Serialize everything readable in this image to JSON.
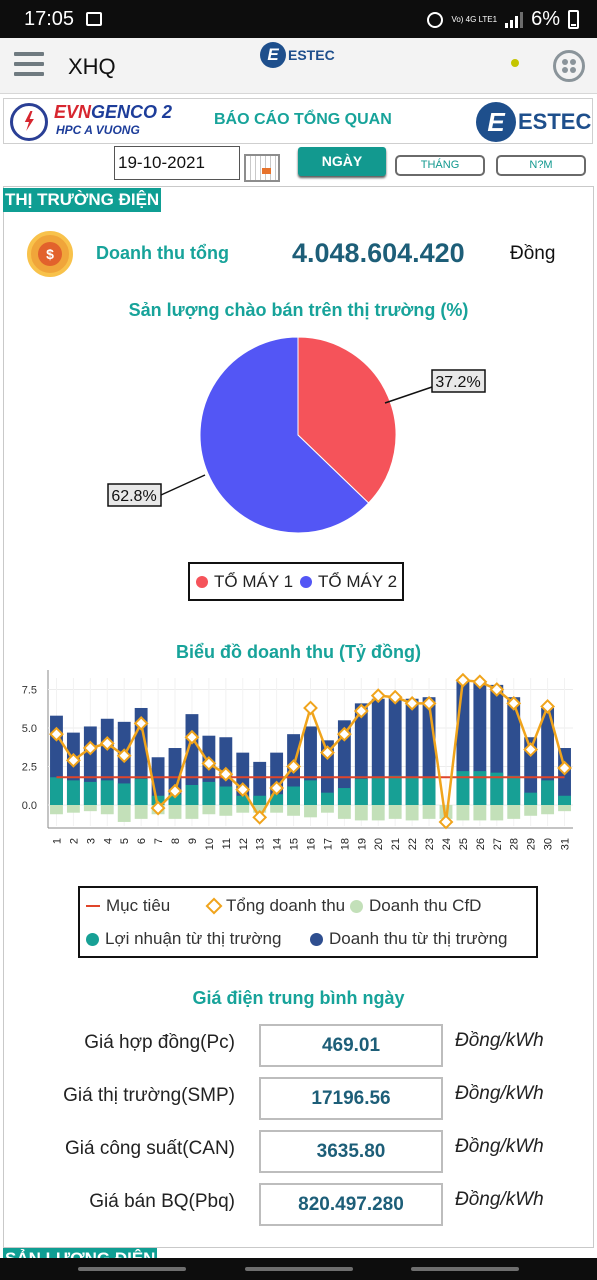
{
  "status_bar": {
    "time": "17:05",
    "network": "Vo) 4G\nLTE1",
    "battery": "6%"
  },
  "app_bar": {
    "title": "XHQ",
    "logo_text": "ESTEC",
    "status_dot_color": "#c4c500"
  },
  "banner": {
    "left_logo_line1_a": "EVN",
    "left_logo_line1_b": "GENCO 2",
    "left_logo_line2": "HPC A VUONG",
    "title": "BÁO CÁO TỔNG QUAN",
    "right_logo_letter": "E",
    "right_logo_text": "ESTEC"
  },
  "filter": {
    "date": "19-10-2021",
    "tab_day": "NGÀY",
    "tab_month": "THÁNG",
    "tab_year": "N?M"
  },
  "market_section": {
    "title": "THỊ TRƯỜNG ĐIỆN",
    "coin_symbol": "$",
    "revenue_label": "Doanh thu tổng",
    "revenue_value": "4.048.604.420",
    "revenue_unit": "Đồng"
  },
  "pie": {
    "title": "Sản lượng chào bán trên thị trường (%)",
    "label_a": "37.2%",
    "label_b": "62.8%",
    "legend_a": "TỔ MÁY 1",
    "legend_b": "TỔ MÁY 2"
  },
  "bar": {
    "title": "Biểu đồ doanh thu (Tỷ đồng)",
    "legend": {
      "target": "Mục tiêu",
      "total": "Tổng doanh thu",
      "cfd": "Doanh thu CfD",
      "profit": "Lợi nhuận từ thị trường",
      "market": "Doanh thu từ thị trường"
    }
  },
  "prices": {
    "title": "Giá điện trung bình ngày",
    "rows": [
      {
        "label": "Giá hợp đồng(Pc)",
        "value": "469.01",
        "unit": "Đồng/kWh"
      },
      {
        "label": "Giá thị trường(SMP)",
        "value": "17196.56",
        "unit": "Đồng/kWh"
      },
      {
        "label": "Giá công suất(CAN)",
        "value": "3635.80",
        "unit": "Đồng/kWh"
      },
      {
        "label": "Giá bán BQ(Pbq)",
        "value": "820.497.280",
        "unit": "Đồng/kWh"
      }
    ]
  },
  "next_section": {
    "title": "SẢN LƯỢNG ĐIỆN"
  },
  "colors": {
    "accent": "#17a39a",
    "pie_a": "#f5535a",
    "pie_b": "#5356f5",
    "market": "#2e4e8f",
    "profit": "#17a095",
    "cfd": "#c3e0b9",
    "target": "#e0452a",
    "total": "#f0a41c"
  },
  "chart_data": [
    {
      "type": "pie",
      "title": "Sản lượng chào bán trên thị trường (%)",
      "categories": [
        "TỔ MÁY 1",
        "TỔ MÁY 2"
      ],
      "values": [
        37.2,
        62.8
      ]
    },
    {
      "type": "bar",
      "title": "Biểu đồ doanh thu (Tỷ đồng)",
      "categories": [
        "1",
        "2",
        "3",
        "4",
        "5",
        "6",
        "7",
        "8",
        "9",
        "10",
        "11",
        "12",
        "13",
        "14",
        "15",
        "16",
        "17",
        "18",
        "19",
        "20",
        "21",
        "22",
        "23",
        "24",
        "25",
        "26",
        "27",
        "28",
        "29",
        "30",
        "31"
      ],
      "yticks": [
        "0.0",
        "2.5",
        "5.0",
        "7.5"
      ],
      "ylim": [
        -1.5,
        8.5
      ],
      "series": [
        {
          "name": "Doanh thu từ thị trường",
          "values": [
            5.8,
            4.7,
            5.1,
            5.6,
            5.4,
            6.3,
            3.1,
            3.7,
            5.9,
            4.5,
            4.4,
            3.4,
            2.8,
            3.4,
            4.6,
            5.1,
            4.2,
            5.5,
            6.6,
            6.9,
            7.0,
            6.9,
            7.0,
            0.0,
            8.1,
            8.0,
            7.8,
            7.0,
            4.4,
            6.3,
            3.7
          ]
        },
        {
          "name": "Lợi nhuận từ thị trường",
          "values": [
            1.8,
            1.6,
            1.5,
            1.6,
            1.4,
            1.7,
            0.6,
            0.7,
            1.3,
            1.5,
            1.2,
            0.6,
            0.6,
            0.7,
            1.2,
            1.6,
            0.8,
            1.1,
            1.7,
            1.8,
            1.9,
            1.8,
            1.8,
            0.0,
            2.2,
            2.2,
            2.1,
            1.9,
            0.8,
            1.6,
            0.6
          ]
        },
        {
          "name": "Doanh thu CfD",
          "values": [
            -0.6,
            -0.5,
            -0.4,
            -0.6,
            -1.1,
            -0.9,
            -0.6,
            -0.9,
            -0.9,
            -0.6,
            -0.7,
            -0.5,
            -0.5,
            -0.5,
            -0.7,
            -0.8,
            -0.5,
            -0.9,
            -1.0,
            -1.0,
            -0.9,
            -1.0,
            -0.9,
            -0.9,
            -1.0,
            -1.0,
            -1.0,
            -0.9,
            -0.7,
            -0.6,
            -0.4
          ]
        },
        {
          "name": "Tổng doanh thu",
          "values": [
            4.6,
            2.9,
            3.7,
            4.0,
            3.2,
            5.3,
            -0.2,
            0.9,
            4.4,
            2.7,
            2.0,
            1.0,
            -0.8,
            1.1,
            2.5,
            6.3,
            3.4,
            4.6,
            6.1,
            7.1,
            7.0,
            6.6,
            6.6,
            -1.1,
            8.1,
            8.0,
            7.5,
            6.6,
            3.6,
            6.4,
            2.4
          ]
        },
        {
          "name": "Mục tiêu",
          "values": [
            1.8,
            1.8,
            1.8,
            1.8,
            1.8,
            1.8,
            1.8,
            1.8,
            1.8,
            1.8,
            1.8,
            1.8,
            1.8,
            1.8,
            1.8,
            1.8,
            1.8,
            1.8,
            1.8,
            1.8,
            1.8,
            1.8,
            1.8,
            1.8,
            1.8,
            1.8,
            1.8,
            1.8,
            1.8,
            1.8,
            1.8
          ]
        }
      ]
    }
  ]
}
